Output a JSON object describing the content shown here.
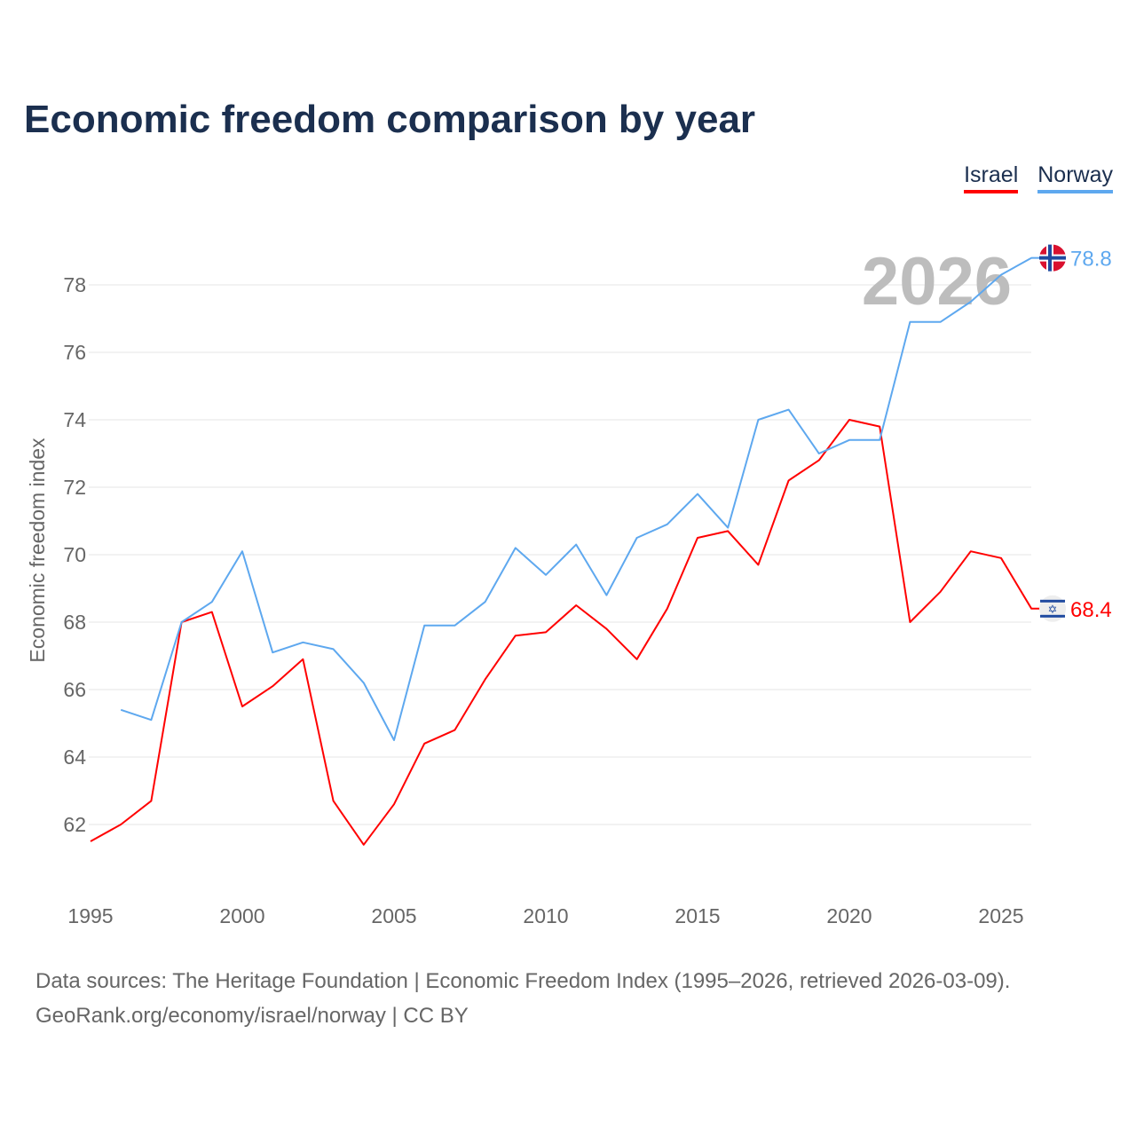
{
  "title": "Economic freedom comparison by year",
  "year_watermark": "2026",
  "source_line1": "Data sources: The Heritage Foundation | Economic Freedom Index (1995–2026, retrieved 2026-03-09).",
  "source_line2": "GeoRank.org/economy/israel/norway | CC BY",
  "chart_data": {
    "type": "line",
    "title": "Economic freedom comparison by year",
    "xlabel": "",
    "ylabel": "Economic freedom index",
    "xlim": [
      1995,
      2026
    ],
    "ylim": [
      60.5,
      79.5
    ],
    "x_ticks": [
      1995,
      2000,
      2005,
      2010,
      2015,
      2020,
      2025
    ],
    "y_ticks": [
      62,
      64,
      66,
      68,
      70,
      72,
      74,
      76,
      78
    ],
    "grid": true,
    "legend_position": "top-right",
    "series": [
      {
        "name": "Israel",
        "color": "#ff0000",
        "end_label": "68.4",
        "flag": "israel-flag",
        "x": [
          1995,
          1996,
          1997,
          1998,
          1999,
          2000,
          2001,
          2002,
          2003,
          2004,
          2005,
          2006,
          2007,
          2008,
          2009,
          2010,
          2011,
          2012,
          2013,
          2014,
          2015,
          2016,
          2017,
          2018,
          2019,
          2020,
          2021,
          2022,
          2023,
          2024,
          2025,
          2026
        ],
        "values": [
          61.5,
          62.0,
          62.7,
          68.0,
          68.3,
          65.5,
          66.1,
          66.9,
          62.7,
          61.4,
          62.6,
          64.4,
          64.8,
          66.3,
          67.6,
          67.7,
          68.5,
          67.8,
          66.9,
          68.4,
          70.5,
          70.7,
          69.7,
          72.2,
          72.8,
          74.0,
          73.8,
          68.0,
          68.9,
          70.1,
          69.9,
          68.4
        ]
      },
      {
        "name": "Norway",
        "color": "#5ea8ef",
        "end_label": "78.8",
        "flag": "norway-flag",
        "x": [
          1996,
          1997,
          1998,
          1999,
          2000,
          2001,
          2002,
          2003,
          2004,
          2005,
          2006,
          2007,
          2008,
          2009,
          2010,
          2011,
          2012,
          2013,
          2014,
          2015,
          2016,
          2017,
          2018,
          2019,
          2020,
          2021,
          2022,
          2023,
          2024,
          2025,
          2026
        ],
        "values": [
          65.4,
          65.1,
          68.0,
          68.6,
          70.1,
          67.1,
          67.4,
          67.2,
          66.2,
          64.5,
          67.9,
          67.9,
          68.6,
          70.2,
          69.4,
          70.3,
          68.8,
          70.5,
          70.9,
          71.8,
          70.8,
          74.0,
          74.3,
          73.0,
          73.4,
          73.4,
          76.9,
          76.9,
          77.5,
          78.3,
          78.8
        ]
      }
    ]
  }
}
